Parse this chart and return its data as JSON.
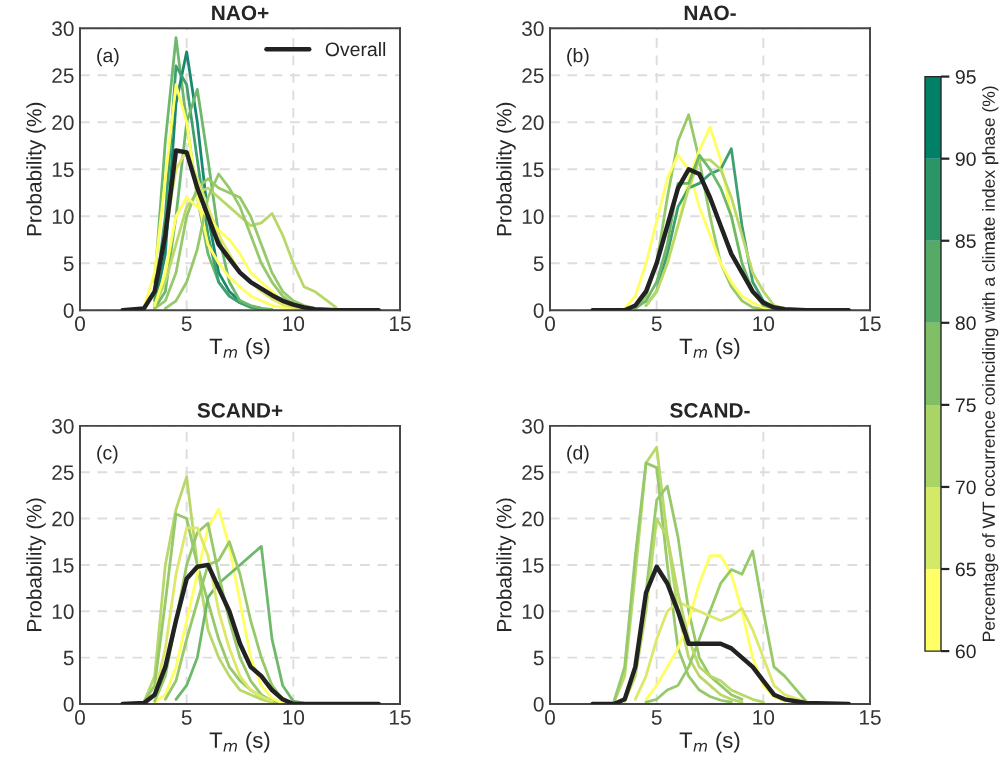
{
  "chart_data": [
    {
      "type": "line",
      "title": "NAO+",
      "xlabel": "T$_{m}$ (s)",
      "ylabel": "Probability (%)",
      "annotations": [
        "(a)"
      ],
      "x": [
        2,
        3,
        3.5,
        4,
        4.5,
        5,
        5.5,
        6,
        6.5,
        7,
        7.5,
        8,
        8.5,
        9,
        9.5,
        10,
        10.5,
        11,
        12,
        14
      ],
      "xlim": [
        0,
        15
      ],
      "xticks": [
        0,
        5,
        10,
        15
      ],
      "ylim": [
        0,
        30
      ],
      "yticks": [
        0,
        5,
        10,
        15,
        20,
        25,
        30
      ],
      "grid": true,
      "legend": "top right",
      "series": [
        {
          "color": "#6db86a",
          "values": [
            null,
            null,
            3,
            18,
            29,
            20,
            12,
            6,
            3,
            1.5,
            0.8,
            0.4,
            0.2,
            0.1,
            null,
            null,
            null,
            null,
            null,
            null
          ]
        },
        {
          "color": "#1a8870",
          "values": [
            null,
            null,
            0.5,
            6,
            22,
            27.5,
            20,
            10,
            4,
            2,
            1,
            0.4,
            0.2,
            null,
            null,
            null,
            null,
            null,
            null,
            null
          ]
        },
        {
          "color": "#3f9f70",
          "values": [
            null,
            null,
            1,
            10,
            26,
            24,
            16,
            8,
            3,
            1.5,
            0.8,
            0.3,
            0.1,
            null,
            null,
            null,
            null,
            null,
            null,
            null
          ]
        },
        {
          "color": "#6db86a",
          "values": [
            null,
            null,
            0.2,
            2,
            10,
            20,
            23.5,
            16,
            8,
            3,
            1,
            0.5,
            0.2,
            null,
            null,
            null,
            null,
            null,
            null,
            null
          ]
        },
        {
          "color": "#ffff5f",
          "values": [
            null,
            0.3,
            4,
            14,
            24,
            20,
            12,
            7,
            5,
            3.5,
            2.5,
            1.5,
            1,
            0.5,
            0.3,
            0.1,
            null,
            null,
            null,
            null
          ]
        },
        {
          "color": "#b8d86a",
          "values": [
            null,
            null,
            0.5,
            3,
            7,
            11,
            12.5,
            13,
            12,
            11,
            10,
            9,
            9.3,
            10.3,
            8,
            5,
            2.5,
            2,
            0.3,
            null
          ]
        },
        {
          "color": "#96c96a",
          "values": [
            null,
            null,
            0.2,
            1,
            4,
            10,
            13,
            14,
            13,
            12.5,
            12,
            10,
            7,
            4,
            2,
            1,
            0.5,
            0.2,
            null,
            null
          ]
        },
        {
          "color": "#dde76a",
          "values": [
            null,
            0.2,
            2,
            8,
            15,
            17,
            14,
            11,
            8,
            6,
            4,
            3,
            2,
            1.2,
            0.6,
            0.3,
            0.1,
            null,
            null,
            null
          ]
        },
        {
          "color": "#96c96a",
          "values": [
            null,
            null,
            null,
            0.2,
            1,
            3,
            6.5,
            12,
            14.5,
            13,
            11,
            8,
            5,
            3,
            1.5,
            0.6,
            0.2,
            null,
            null,
            null
          ]
        },
        {
          "color": "#ffff5f",
          "values": [
            null,
            null,
            0.5,
            4,
            10,
            12,
            11,
            10,
            8.5,
            7.5,
            6,
            4,
            3,
            2,
            1,
            0.5,
            0.2,
            null,
            null,
            null
          ]
        },
        {
          "name": "Overall",
          "color": "#222222",
          "values": [
            0,
            0.2,
            2,
            8,
            17,
            16.8,
            13,
            10,
            7,
            5.5,
            4,
            3,
            2.3,
            1.6,
            1,
            0.6,
            0.3,
            0.1,
            0,
            0
          ]
        }
      ]
    },
    {
      "type": "line",
      "title": "NAO-",
      "xlabel": "T$_{m}$ (s)",
      "ylabel": "Probability (%)",
      "annotations": [
        "(b)"
      ],
      "x": [
        2,
        3,
        3.5,
        4,
        4.5,
        5,
        5.5,
        6,
        6.5,
        7,
        7.5,
        8,
        8.5,
        9,
        9.5,
        10,
        10.5,
        11,
        12,
        14
      ],
      "xlim": [
        0,
        15
      ],
      "xticks": [
        0,
        5,
        10,
        15
      ],
      "ylim": [
        0,
        30
      ],
      "yticks": [
        0,
        5,
        10,
        15,
        20,
        25,
        30
      ],
      "grid": true,
      "series": [
        {
          "color": "#96c96a",
          "values": [
            null,
            null,
            null,
            0.2,
            1.5,
            5,
            12,
            18,
            20.8,
            16,
            10,
            5,
            2.5,
            1,
            0.3,
            0.1,
            null,
            null,
            null,
            null
          ]
        },
        {
          "color": "#ffff5f",
          "values": [
            null,
            null,
            null,
            null,
            0.5,
            2,
            5,
            9,
            14,
            17,
            19.5,
            16,
            10,
            5,
            2,
            0.5,
            0.2,
            null,
            null,
            null
          ]
        },
        {
          "color": "#ffff5f",
          "values": [
            null,
            null,
            0.2,
            1.5,
            5,
            9.5,
            14,
            16.5,
            15,
            11,
            8,
            5,
            3,
            1.5,
            0.8,
            0.3,
            0.1,
            null,
            null,
            null
          ]
        },
        {
          "color": "#3f9f70",
          "values": [
            null,
            null,
            null,
            null,
            0.5,
            2,
            6,
            11,
            13,
            13.5,
            14.5,
            15,
            17.2,
            9,
            3,
            1,
            0.3,
            null,
            null,
            null
          ]
        },
        {
          "color": "#b8d86a",
          "values": [
            null,
            null,
            null,
            null,
            0.5,
            2,
            5,
            9,
            13,
            16,
            16,
            15,
            12,
            8,
            4,
            2,
            0.5,
            0.2,
            null,
            null
          ]
        },
        {
          "color": "#6db86a",
          "values": [
            null,
            null,
            null,
            0.2,
            1,
            3,
            7,
            13.5,
            13.5,
            16.5,
            15,
            13,
            10,
            5,
            2,
            0.5,
            0.2,
            null,
            null,
            null
          ]
        },
        {
          "color": "#222222",
          "values": [
            0,
            0,
            0,
            0.5,
            2,
            5,
            9,
            13,
            15,
            14.5,
            12,
            9,
            6,
            4,
            2,
            0.8,
            0.3,
            0.1,
            0,
            0
          ]
        }
      ]
    },
    {
      "type": "line",
      "title": "SCAND+",
      "xlabel": "T$_{m}$ (s)",
      "ylabel": "Probability (%)",
      "annotations": [
        "(c)"
      ],
      "x": [
        2,
        3,
        3.5,
        4,
        4.5,
        5,
        5.5,
        6,
        6.5,
        7,
        7.5,
        8,
        8.5,
        9,
        9.5,
        10,
        10.5,
        11,
        12,
        14
      ],
      "xlim": [
        0,
        15
      ],
      "xticks": [
        0,
        5,
        10,
        15
      ],
      "ylim": [
        0,
        30
      ],
      "yticks": [
        0,
        5,
        10,
        15,
        20,
        25,
        30
      ],
      "grid": true,
      "series": [
        {
          "color": "#b8d86a",
          "values": [
            null,
            0.2,
            3,
            15,
            21,
            24.5,
            15,
            8,
            5,
            3,
            1.5,
            1,
            0.5,
            0.2,
            null,
            null,
            null,
            null,
            null,
            null
          ]
        },
        {
          "color": "#96c96a",
          "values": [
            null,
            0.2,
            2,
            11,
            20.5,
            20,
            15,
            11,
            7,
            4,
            2.5,
            1.5,
            0.8,
            0.3,
            0.1,
            null,
            null,
            null,
            null,
            null
          ]
        },
        {
          "color": "#ffff5f",
          "values": [
            null,
            null,
            0.2,
            1,
            4,
            9,
            14,
            19,
            21,
            17,
            11,
            5,
            2,
            0.6,
            0.1,
            null,
            null,
            null,
            null,
            null
          ]
        },
        {
          "color": "#6db86a",
          "values": [
            null,
            null,
            null,
            null,
            0.5,
            2,
            5,
            11.5,
            13,
            14,
            15,
            16,
            17,
            7,
            2,
            0.3,
            0.1,
            null,
            null,
            null
          ]
        },
        {
          "color": "#96c96a",
          "values": [
            null,
            null,
            0.3,
            3,
            9,
            15,
            18.5,
            19.5,
            14,
            9,
            5,
            2.5,
            1,
            0.3,
            null,
            null,
            null,
            null,
            null,
            null
          ]
        },
        {
          "color": "#dde76a",
          "values": [
            null,
            null,
            1,
            6,
            14,
            19,
            19,
            16,
            10,
            6,
            3,
            1.5,
            0.8,
            0.3,
            null,
            null,
            null,
            null,
            null,
            null
          ]
        },
        {
          "color": "#96c96a",
          "values": [
            null,
            null,
            null,
            0.5,
            2.5,
            7,
            11,
            15,
            15.5,
            17.5,
            14,
            9,
            5,
            2,
            0.5,
            null,
            null,
            null,
            null,
            null
          ]
        },
        {
          "color": "#222222",
          "values": [
            0,
            0.1,
            1,
            4,
            9,
            13.5,
            14.8,
            15,
            12.5,
            10,
            6.5,
            4,
            3,
            1.5,
            0.5,
            0,
            0,
            0,
            0,
            0
          ]
        }
      ]
    },
    {
      "type": "line",
      "title": "SCAND-",
      "xlabel": "T$_{m}$ (s)",
      "ylabel": "Probability (%)",
      "annotations": [
        "(d)"
      ],
      "x": [
        2,
        3,
        3.5,
        4,
        4.5,
        5,
        5.5,
        6,
        6.5,
        7,
        7.5,
        8,
        8.5,
        9,
        9.5,
        10,
        10.5,
        11,
        12,
        14
      ],
      "xlim": [
        0,
        15
      ],
      "xticks": [
        0,
        5,
        10,
        15
      ],
      "ylim": [
        0,
        30
      ],
      "yticks": [
        0,
        5,
        10,
        15,
        20,
        25,
        30
      ],
      "grid": true,
      "clabel": "Percentage of WT occurrence coinciding with a climate index phase (%)",
      "clim": [
        60,
        95
      ],
      "cticks": [
        60,
        65,
        70,
        75,
        80,
        85,
        90,
        95
      ],
      "series": [
        {
          "color": "#b8d86a",
          "values": [
            null,
            0.2,
            3,
            14,
            26,
            27.7,
            18,
            10,
            5,
            3,
            2,
            1,
            0.5,
            0.2,
            null,
            null,
            null,
            null,
            null,
            null
          ]
        },
        {
          "color": "#96c96a",
          "values": [
            null,
            0.3,
            4,
            16,
            26,
            25.5,
            15,
            6,
            3,
            1.5,
            0.8,
            0.4,
            0.2,
            null,
            null,
            null,
            null,
            null,
            null,
            null
          ]
        },
        {
          "color": "#96c96a",
          "values": [
            null,
            null,
            0.5,
            4,
            12,
            22,
            23.5,
            18,
            10,
            5,
            3,
            2,
            1,
            0.5,
            null,
            null,
            null,
            null,
            null,
            null
          ]
        },
        {
          "color": "#ffff5f",
          "values": [
            null,
            null,
            null,
            null,
            0.5,
            2,
            4,
            6,
            9,
            13,
            16,
            16,
            14,
            10,
            5,
            2,
            0.8,
            0.3,
            null,
            null
          ]
        },
        {
          "color": "#96c96a",
          "values": [
            null,
            null,
            null,
            null,
            0.2,
            0.5,
            1.5,
            2,
            4,
            7,
            10,
            13,
            14.5,
            14,
            16.5,
            10,
            4,
            3,
            0.3,
            null
          ]
        },
        {
          "color": "#dde76a",
          "values": [
            null,
            null,
            null,
            0.5,
            3,
            7,
            10,
            11,
            10.5,
            10,
            9.5,
            9,
            9.5,
            10.3,
            8,
            5,
            2,
            1,
            0.2,
            null
          ]
        },
        {
          "color": "#b8d86a",
          "values": [
            null,
            null,
            0.3,
            3,
            10,
            20,
            18,
            12,
            7,
            4,
            3,
            2.5,
            1.5,
            1,
            0.5,
            0.2,
            null,
            null,
            null,
            null
          ]
        },
        {
          "color": "#222222",
          "values": [
            0,
            0,
            0.5,
            4,
            12,
            14.8,
            13,
            10,
            6.5,
            6.5,
            6.5,
            6.5,
            6,
            5,
            4,
            2.5,
            1,
            0.5,
            0.1,
            0
          ]
        }
      ]
    }
  ]
}
